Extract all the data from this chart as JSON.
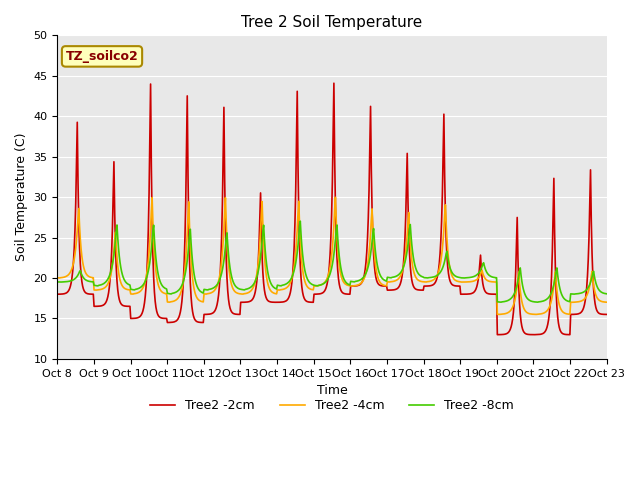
{
  "title": "Tree 2 Soil Temperature",
  "ylabel": "Soil Temperature (C)",
  "xlabel": "Time",
  "annotation": "TZ_soilco2",
  "ylim": [
    10,
    50
  ],
  "xlim": [
    0,
    15
  ],
  "bg_color": "#e8e8e8",
  "tick_labels": [
    "Oct 8",
    "Oct 9",
    "Oct 10",
    "Oct 11",
    "Oct 12",
    "Oct 13",
    "Oct 14",
    "Oct 15",
    "Oct 16",
    "Oct 17",
    "Oct 18",
    "Oct 19",
    "Oct 20",
    "Oct 21",
    "Oct 22",
    "Oct 23"
  ],
  "yticks": [
    10,
    15,
    20,
    25,
    30,
    35,
    40,
    45,
    50
  ],
  "color_2cm": "#cc0000",
  "color_4cm": "#ffaa00",
  "color_8cm": "#44cc00",
  "linewidth": 1.2,
  "title_fontsize": 11,
  "axis_label_fontsize": 9,
  "tick_fontsize": 8,
  "legend_fontsize": 9,
  "annot_text_color": "#880000",
  "annot_bg_color": "#ffffbb",
  "annot_edge_color": "#aa8800",
  "n_days": 15,
  "peaks_2cm": [
    40,
    35,
    45,
    43.5,
    42,
    31,
    44,
    45,
    42,
    36,
    41,
    23,
    28,
    33,
    34
  ],
  "troughs_2cm": [
    18,
    16.5,
    15,
    14.5,
    15.5,
    17,
    17,
    18,
    19,
    18.5,
    19,
    18,
    13,
    13,
    15.5
  ],
  "peaks_4cm": [
    29,
    26,
    30.5,
    30,
    30.5,
    30,
    30,
    30.5,
    29,
    28.5,
    29.5,
    21,
    21,
    21,
    21
  ],
  "troughs_4cm": [
    20,
    18.5,
    18,
    17,
    18,
    18,
    18.5,
    19,
    19,
    19.5,
    19.5,
    19.5,
    15.5,
    15.5,
    17
  ],
  "peaks_8cm": [
    21,
    27,
    27,
    26.5,
    26,
    27,
    27.5,
    27,
    26.5,
    27,
    23.5,
    22,
    21.5,
    21.5,
    21
  ],
  "troughs_8cm": [
    19.5,
    19,
    18.5,
    18,
    18.5,
    18.5,
    19,
    19,
    19.5,
    20,
    20,
    20,
    17,
    17,
    18
  ]
}
